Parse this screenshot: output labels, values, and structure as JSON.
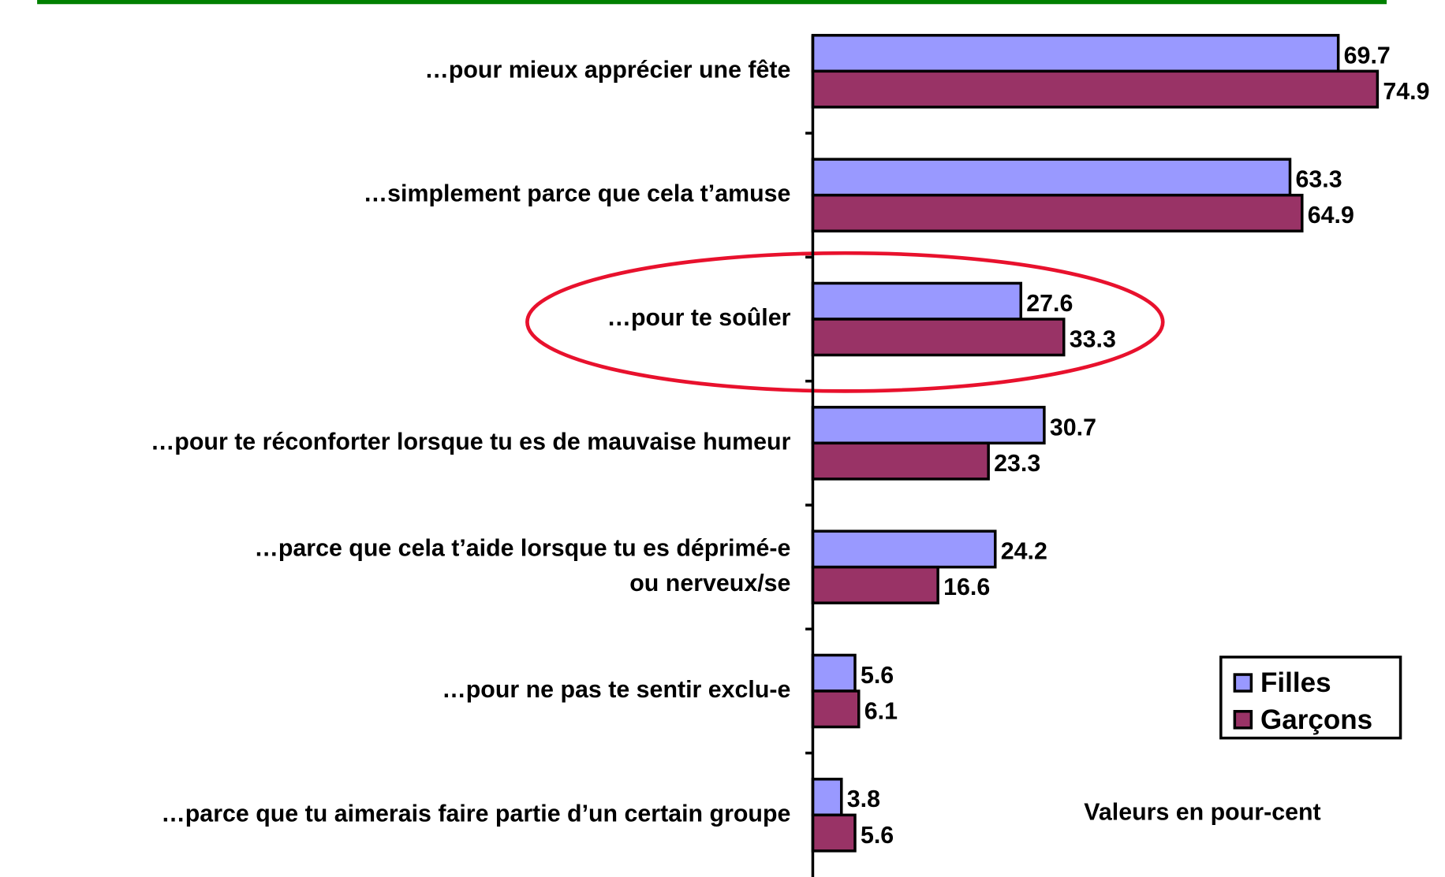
{
  "chart_data": {
    "type": "barh",
    "categories": [
      "…pour mieux apprécier une fête",
      "…simplement parce que cela t’amuse",
      "…pour te soûler",
      "…pour te réconforter lorsque tu es de mauvaise humeur",
      [
        "…parce que cela t’aide lorsque tu es déprimé-e",
        "ou nerveux/se"
      ],
      "…pour ne pas te sentir exclu-e",
      "…parce que tu aimerais faire partie d’un certain groupe"
    ],
    "series": [
      {
        "name": "Filles",
        "color": "#9999ff",
        "values": [
          69.7,
          63.3,
          27.6,
          30.7,
          24.2,
          5.6,
          3.8
        ]
      },
      {
        "name": "Garçons",
        "color": "#993366",
        "values": [
          74.9,
          64.9,
          33.3,
          23.3,
          16.6,
          6.1,
          5.6
        ]
      }
    ],
    "annotation": "Valeurs en pour-cent"
  }
}
